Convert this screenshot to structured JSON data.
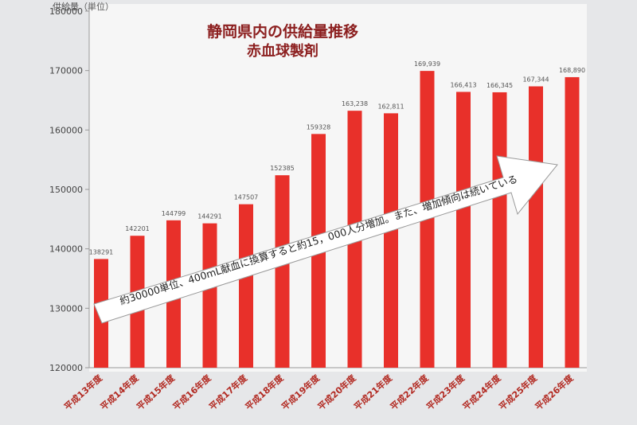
{
  "chart_data": {
    "type": "bar",
    "title": "静岡県内の供給量推移",
    "subtitle": "赤血球製剤",
    "ylabel": "供給量（単位）",
    "ylim": [
      120000,
      180000
    ],
    "yticks": [
      120000,
      130000,
      140000,
      150000,
      160000,
      170000,
      180000
    ],
    "grid": false,
    "categories": [
      "平成13年度",
      "平成14年度",
      "平成15年度",
      "平成16年度",
      "平成17年度",
      "平成18年度",
      "平成19年度",
      "平成20年度",
      "平成21年度",
      "平成22年度",
      "平成23年度",
      "平成24年度",
      "平成25年度",
      "平成26年度"
    ],
    "values": [
      138291,
      142201,
      144799,
      144291,
      147507,
      152385,
      159328,
      163238,
      162811,
      169939,
      166413,
      166345,
      167344,
      168890
    ],
    "data_labels": [
      "138291",
      "142201",
      "144799",
      "144291",
      "147507",
      "152385",
      "159328",
      "163,238",
      "162,811",
      "169,939",
      "166,413",
      "166,345",
      "167,344",
      "168,890"
    ],
    "bar_color": "#e8302a",
    "annotation": "約30000単位、400mL献血に換算すると約15，000人分増加。また、増加傾向は続いている"
  }
}
